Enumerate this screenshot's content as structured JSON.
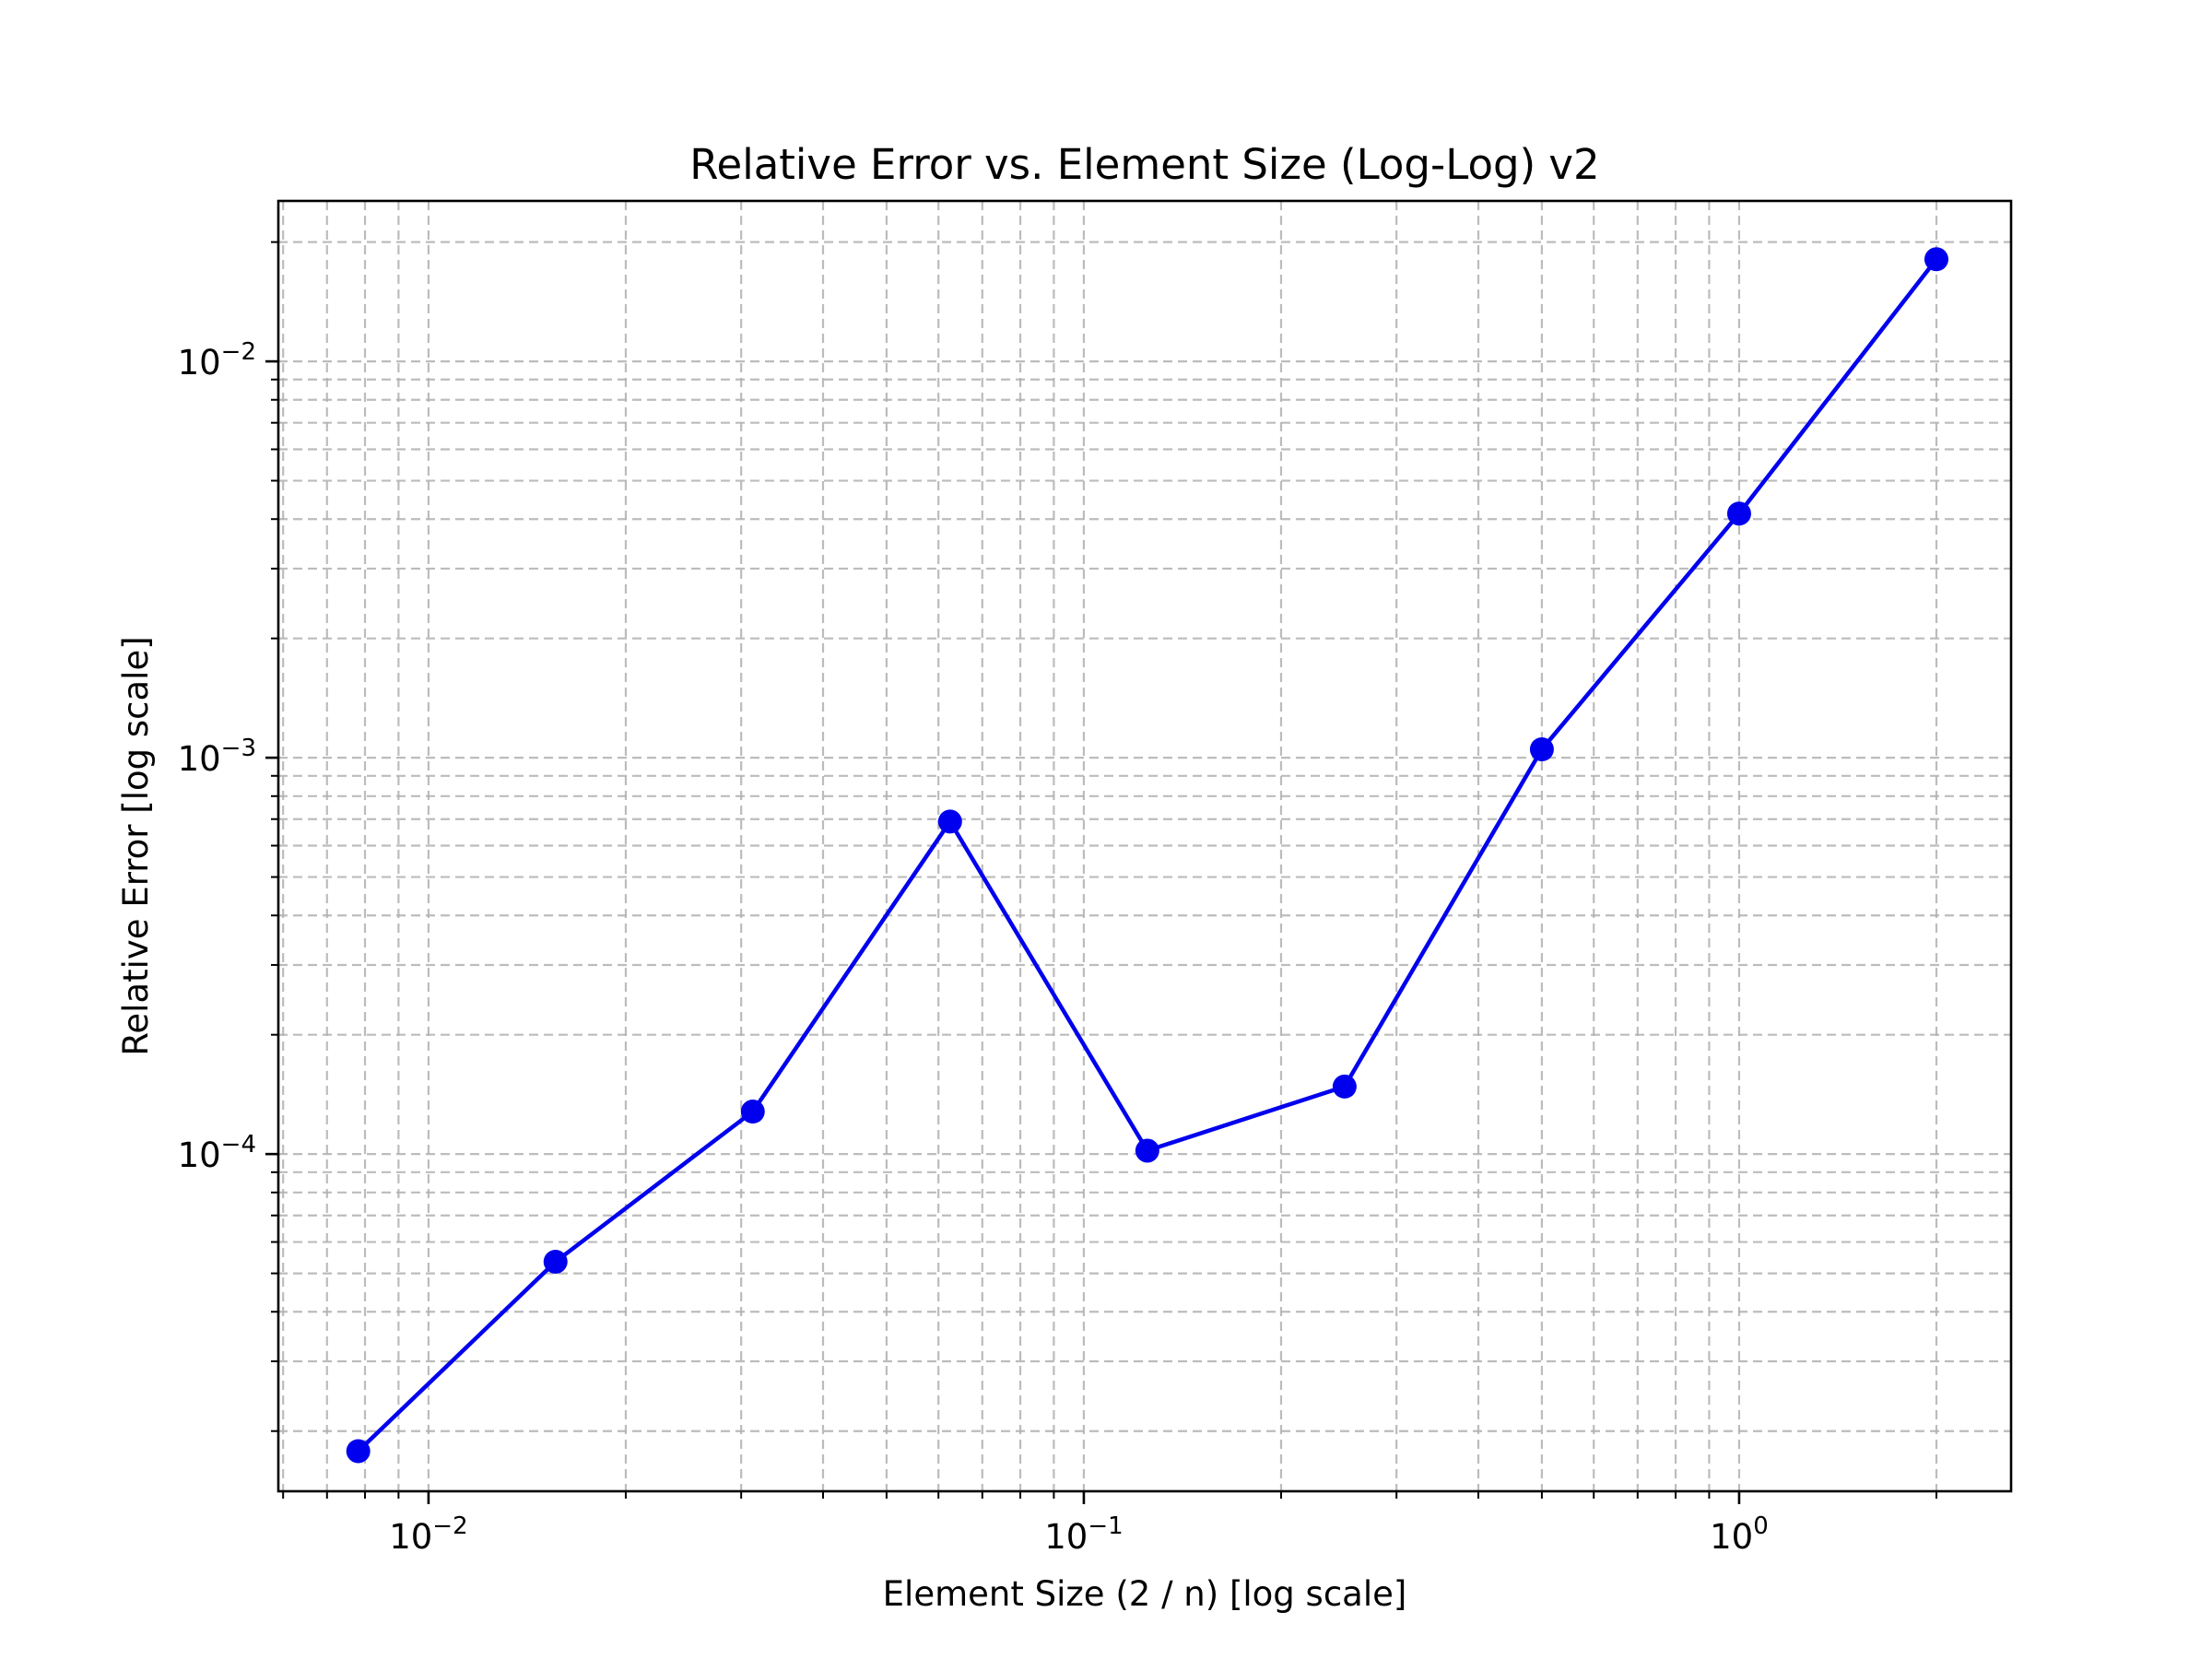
{
  "chart_data": {
    "type": "line",
    "title": "Relative Error vs. Element Size (Log-Log) v2",
    "xlabel": "Element Size (2 / n) [log scale]",
    "ylabel": "Relative Error [log scale]",
    "xscale": "log",
    "yscale": "log",
    "xlim": [
      0.0059,
      2.6
    ],
    "ylim": [
      1.41e-05,
      0.0254
    ],
    "grid": true,
    "grid_which": "both",
    "legend": null,
    "x_ticks": [
      {
        "value": 0.01,
        "base": "10",
        "exp": "−2"
      },
      {
        "value": 0.1,
        "base": "10",
        "exp": "−1"
      },
      {
        "value": 1,
        "base": "10",
        "exp": "0"
      }
    ],
    "y_ticks": [
      {
        "value": 0.0001,
        "base": "10",
        "exp": "−4"
      },
      {
        "value": 0.001,
        "base": "10",
        "exp": "−3"
      },
      {
        "value": 0.01,
        "base": "10",
        "exp": "−2"
      }
    ],
    "series": [
      {
        "name": "Relative Error",
        "color": "#0000ee",
        "marker": "circle",
        "x": [
          0.0078125,
          0.015625,
          0.03125,
          0.0625,
          0.125,
          0.25,
          0.5,
          1,
          2
        ],
        "y": [
          1.78e-05,
          5.35e-05,
          0.000128,
          0.00069,
          0.000102,
          0.000148,
          0.00105,
          0.00413,
          0.0181
        ]
      }
    ]
  }
}
